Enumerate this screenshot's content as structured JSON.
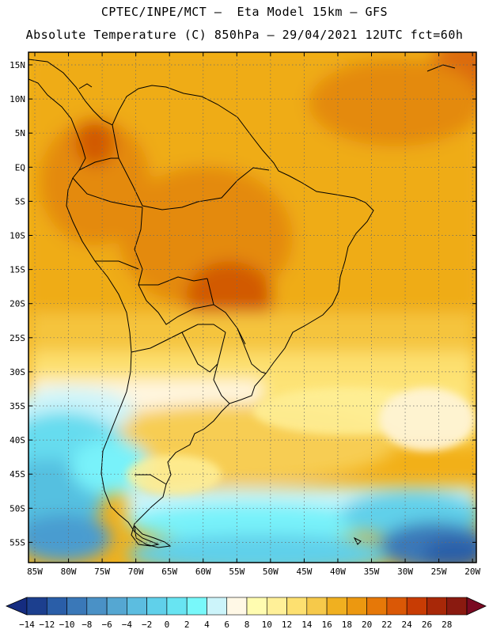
{
  "header": {
    "line1": "CPTEC/INPE/MCT –  Eta Model 15km – GFS",
    "line2": "Absolute Temperature (C) 850hPa – 29/04/2021 12UTC fct=60h"
  },
  "map": {
    "lat_labels": [
      "15N",
      "10N",
      "5N",
      "EQ",
      "5S",
      "10S",
      "15S",
      "20S",
      "25S",
      "30S",
      "35S",
      "40S",
      "45S",
      "50S",
      "55S"
    ],
    "lon_labels": [
      "85W",
      "80W",
      "75W",
      "70W",
      "65W",
      "60W",
      "55W",
      "50W",
      "45W",
      "40W",
      "35W",
      "30W",
      "25W",
      "20W"
    ]
  },
  "colorbar": {
    "labels": [
      "−14",
      "−12",
      "−10",
      "−8",
      "−6",
      "−4",
      "−2",
      "0",
      "2",
      "4",
      "6",
      "8",
      "10",
      "12",
      "14",
      "16",
      "18",
      "20",
      "22",
      "24",
      "26",
      "28"
    ],
    "colors": [
      "#1c3f8e",
      "#2a5ea8",
      "#3a78b8",
      "#4a91c6",
      "#55a7d2",
      "#5cbde0",
      "#60d0ea",
      "#68e4f2",
      "#78f8fa",
      "#ccf4fa",
      "#fff8e6",
      "#fffcb0",
      "#fff098",
      "#fde070",
      "#f6c94a",
      "#f0b020",
      "#ec9810",
      "#e67808",
      "#da5806",
      "#c83c04",
      "#a82808",
      "#8a1a10"
    ],
    "low_color": "#152c80",
    "high_color": "#7a0a22"
  }
}
